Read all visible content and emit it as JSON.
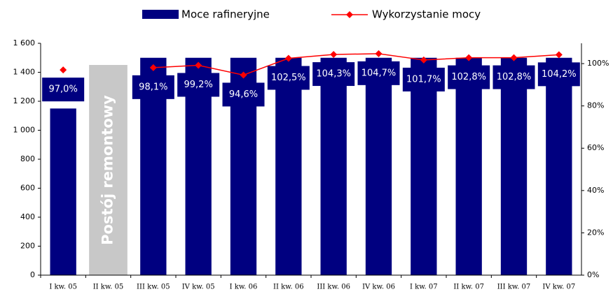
{
  "chart_data": {
    "type": "bar_line",
    "categories": [
      "I kw. 05",
      "II kw. 05",
      "III kw. 05",
      "IV kw. 05",
      "I kw. 06",
      "II kw. 06",
      "III kw. 06",
      "IV kw. 06",
      "I kw. 07",
      "II kw. 07",
      "III kw. 07",
      "IV kw. 07"
    ],
    "series": [
      {
        "name": "Moce rafineryjne",
        "color": "#000080",
        "type": "bar",
        "values": [
          1150,
          null,
          1500,
          1500,
          1500,
          1500,
          1500,
          1500,
          1500,
          1500,
          1500,
          1500
        ]
      },
      {
        "name": "Wykorzystanie mocy",
        "color": "#ff0000",
        "type": "line",
        "axis": "y2",
        "values": [
          97.0,
          null,
          98.1,
          99.2,
          94.6,
          102.5,
          104.3,
          104.7,
          101.7,
          102.8,
          102.8,
          104.2
        ],
        "value_labels": [
          "97,0%",
          null,
          "98,1%",
          "99,2%",
          "94,6%",
          "102,5%",
          "104,3%",
          "104,7%",
          "101,7%",
          "102,8%",
          "102,8%",
          "104,2%"
        ]
      }
    ],
    "annotation": "Postój remontowy",
    "ylim": [
      0,
      1600
    ],
    "yticks": [
      0,
      200,
      400,
      600,
      800,
      {
        "value": 1000,
        "label": "1 000"
      },
      {
        "value": 1200,
        "label": "1 200"
      },
      {
        "value": 1400,
        "label": "1 400"
      },
      {
        "value": 1600,
        "label": "1 600"
      }
    ],
    "y2lim": [
      0,
      109.6
    ],
    "y2ticks": [
      {
        "value": 0,
        "label": "0%"
      },
      {
        "value": 20,
        "label": "20%"
      },
      {
        "value": 40,
        "label": "40%"
      },
      {
        "value": 60,
        "label": "60%"
      },
      {
        "value": 80,
        "label": "80%"
      },
      {
        "value": 100,
        "label": "100%"
      }
    ]
  }
}
